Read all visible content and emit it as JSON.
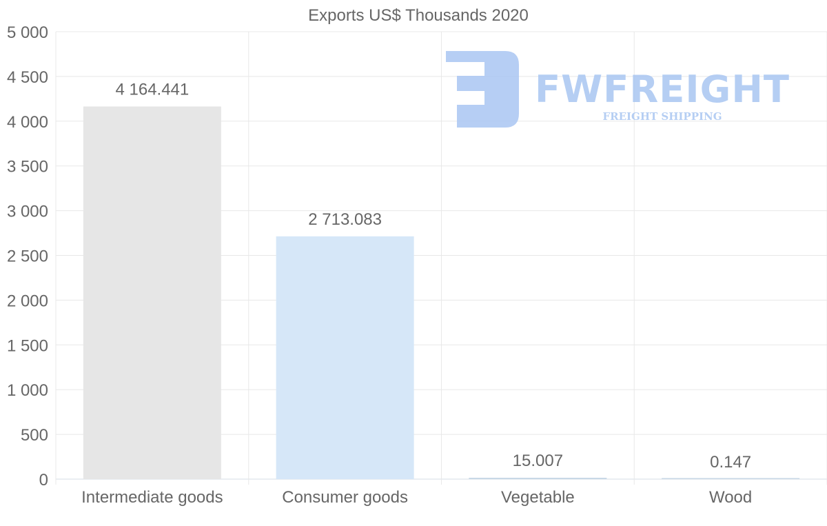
{
  "chart_data": {
    "type": "bar",
    "title": "Exports US$ Thousands 2020",
    "categories": [
      "Intermediate goods",
      "Consumer goods",
      "Vegetable",
      "Wood"
    ],
    "values": [
      4164.441,
      2713.083,
      15.007,
      0.147
    ],
    "value_labels": [
      "4 164.441",
      "2 713.083",
      "15.007",
      "0.147"
    ],
    "colors": [
      "#e6e6e6",
      "#d6e7f8",
      "#c7d7e6",
      "#c7d7e6"
    ],
    "xlabel": "",
    "ylabel": "",
    "ylim": [
      0,
      5000
    ],
    "yticks": [
      0,
      500,
      1000,
      1500,
      2000,
      2500,
      3000,
      3500,
      4000,
      4500,
      5000
    ],
    "ytick_labels": [
      "0",
      "500",
      "1 000",
      "1 500",
      "2 000",
      "2 500",
      "3 000",
      "3 500",
      "4 000",
      "4 500",
      "5 000"
    ],
    "grid": true,
    "legend": "none"
  },
  "watermark": {
    "brand": "FWFREIGHT",
    "tagline": "FREIGHT SHIPPING",
    "color": "#a9c6f2"
  }
}
